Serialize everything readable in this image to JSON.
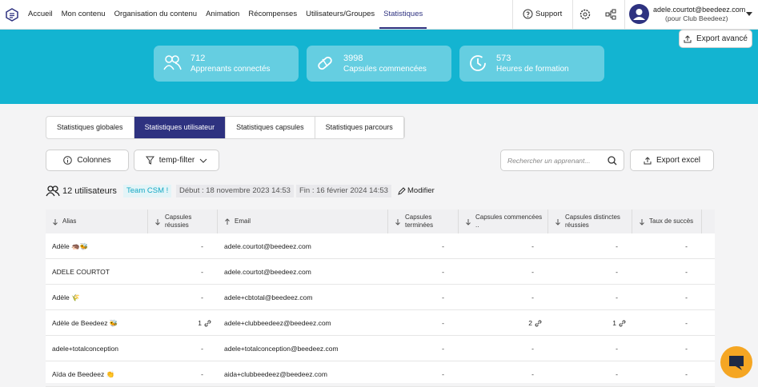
{
  "nav": {
    "items": [
      "Accueil",
      "Mon contenu",
      "Organisation du contenu",
      "Animation",
      "Récompenses",
      "Utilisateurs/Groupes",
      "Statistiques"
    ],
    "support": "Support",
    "user_email": "adele.courtot@beedeez.com",
    "user_org": "(pour Club Beedeez)"
  },
  "banner": {
    "export_button": "Export avancé",
    "stats": [
      {
        "value": "712",
        "label": "Apprenants connectés"
      },
      {
        "value": "3998",
        "label": "Capsules commencées"
      },
      {
        "value": "573",
        "label": "Heures de formation"
      }
    ]
  },
  "tabs": [
    "Statistiques globales",
    "Statistiques utilisateur",
    "Statistiques capsules",
    "Statistiques parcours"
  ],
  "toolbar": {
    "columns_button": "Colonnes",
    "filter_button": "temp-filter",
    "search_placeholder": "Rechercher un apprenant...",
    "export_button": "Export excel"
  },
  "summary": {
    "count": "12 utilisateurs",
    "team": "Team CSM !",
    "start": "Début : 18 novembre 2023 14:53",
    "end": "Fin : 16 février 2024 14:53",
    "edit": "Modifier"
  },
  "table": {
    "columns": [
      "Alias",
      "Capsules réussies",
      "Email",
      "Capsules terminées",
      "Capsules commencées ..",
      "Capsules distinctes réussies",
      "Taux de succès"
    ],
    "rows": [
      [
        "Adèle 🦔🐝",
        "-",
        "adele.courtot@beedeez.com",
        "-",
        "-",
        "-",
        "-"
      ],
      [
        "ADELE COURTOT",
        "-",
        "adele.courtot@beedeez.com",
        "-",
        "-",
        "-",
        "-"
      ],
      [
        "Adèle 🌾",
        "-",
        "adele+cbtotal@beedeez.com",
        "-",
        "-",
        "-",
        "-"
      ],
      [
        "Adèle de Beedeez 🐝",
        "1",
        "adele+clubbeedeez@beedeez.com",
        "-",
        "2",
        "1",
        "-"
      ],
      [
        "adele+totalconception",
        "-",
        "adele+totalconception@beedeez.com",
        "-",
        "-",
        "-",
        "-"
      ],
      [
        "Aïda de Beedeez 👏",
        "-",
        "aida+clubbeedeez@beedeez.com",
        "-",
        "-",
        "-",
        "-"
      ]
    ]
  }
}
